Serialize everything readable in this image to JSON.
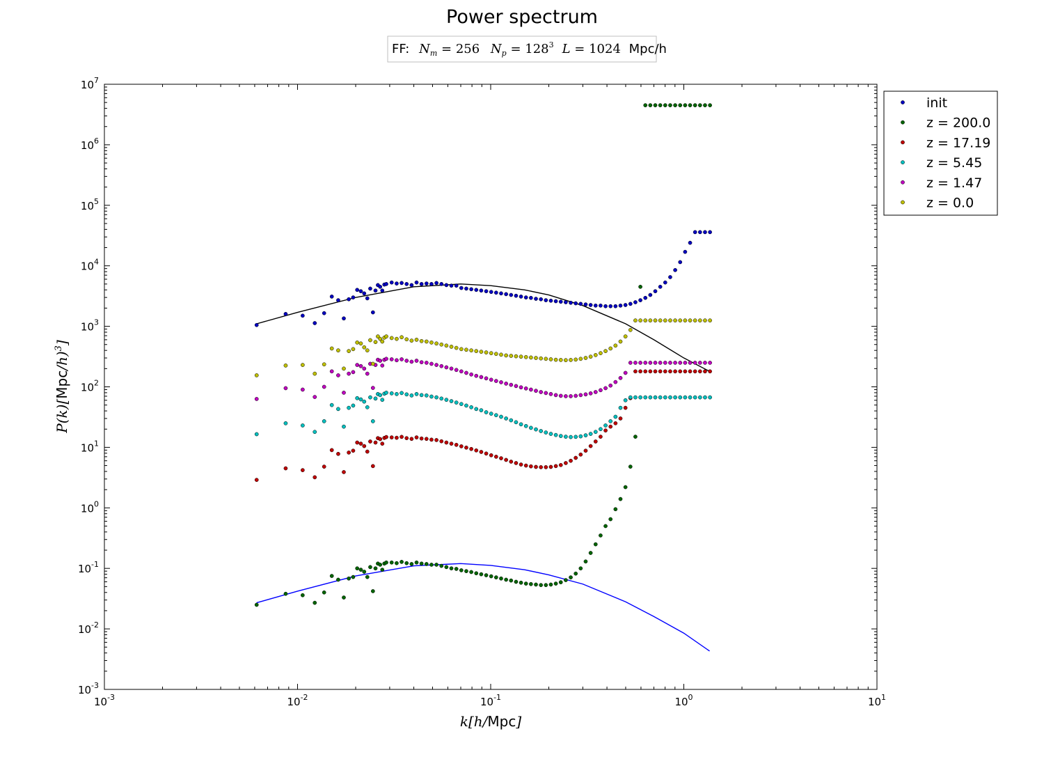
{
  "chart_data": {
    "type": "scatter",
    "title": "Power spectrum",
    "subtitle": "FF:  N_m = 256   N_p = 128^3    L = 1024 Mpc/h",
    "subtitle_parts": {
      "prefix": "FF:",
      "nm_sym": "N",
      "nm_sub": "m",
      "nm_val": "256",
      "np_sym": "N",
      "np_sub": "p",
      "np_val": "128",
      "np_exp": "3",
      "l_sym": "L",
      "l_val": "1024",
      "unit": "Mpc/h"
    },
    "xlabel": "k[h/Mpc]",
    "xlabel_parts": {
      "main": "k[h/",
      "unit": "Mpc",
      "end": "]"
    },
    "ylabel": "P(k)[Mpc/h)^3]",
    "ylabel_parts": {
      "main": "P(k)[",
      "unit": "Mpc",
      "rest": "/h)",
      "exp": "3",
      "end": "]"
    },
    "xscale": "log",
    "yscale": "log",
    "xlim": [
      0.001,
      10
    ],
    "ylim": [
      0.001,
      10000000
    ],
    "x_ticks": [
      {
        "base": "10",
        "exp": "-3",
        "value": 0.001
      },
      {
        "base": "10",
        "exp": "-2",
        "value": 0.01
      },
      {
        "base": "10",
        "exp": "-1",
        "value": 0.1
      },
      {
        "base": "10",
        "exp": "0",
        "value": 1
      },
      {
        "base": "10",
        "exp": "1",
        "value": 10
      }
    ],
    "y_ticks": [
      {
        "base": "10",
        "exp": "-3",
        "value": 0.001
      },
      {
        "base": "10",
        "exp": "-2",
        "value": 0.01
      },
      {
        "base": "10",
        "exp": "-1",
        "value": 0.1
      },
      {
        "base": "10",
        "exp": "0",
        "value": 1
      },
      {
        "base": "10",
        "exp": "1",
        "value": 10
      },
      {
        "base": "10",
        "exp": "2",
        "value": 100
      },
      {
        "base": "10",
        "exp": "3",
        "value": 1000
      },
      {
        "base": "10",
        "exp": "4",
        "value": 10000
      },
      {
        "base": "10",
        "exp": "5",
        "value": 100000
      },
      {
        "base": "10",
        "exp": "6",
        "value": 1000000
      },
      {
        "base": "10",
        "exp": "7",
        "value": 10000000
      }
    ],
    "grid": false,
    "legend_position": "outside-top-right",
    "k": [
      0.00614,
      0.00868,
      0.01063,
      0.01228,
      0.01373,
      0.01504,
      0.01624,
      0.01736,
      0.01842,
      0.01941,
      0.02036,
      0.02127,
      0.02214,
      0.02298,
      0.02379,
      0.02457,
      0.02533,
      0.02606,
      0.02678,
      0.02747,
      0.02815,
      0.02881,
      0.03071,
      0.0326,
      0.03459,
      0.03671,
      0.03895,
      0.04133,
      0.04385,
      0.04653,
      0.04937,
      0.05239,
      0.05559,
      0.05898,
      0.06259,
      0.06641,
      0.07047,
      0.07477,
      0.07934,
      0.08419,
      0.08933,
      0.09479,
      0.10058,
      0.10672,
      0.11324,
      0.12016,
      0.1275,
      0.13529,
      0.14355,
      0.15232,
      0.16163,
      0.1715,
      0.18198,
      0.19309,
      0.20489,
      0.21741,
      0.23069,
      0.24478,
      0.25973,
      0.2756,
      0.29243,
      0.3103,
      0.32925,
      0.34937,
      0.37071,
      0.39335,
      0.41738,
      0.44288,
      0.46993,
      0.49864,
      0.52909,
      0.56141,
      0.59571,
      0.6321,
      0.67071,
      0.71168,
      0.75515,
      0.8013,
      0.85024,
      0.90218,
      0.9573,
      1.01577,
      1.0778,
      1.14365,
      1.21351,
      1.28764,
      1.36629
    ],
    "series": [
      {
        "name": "init",
        "color": "#0000bf",
        "values": [
          1050,
          1600,
          1500,
          1130,
          1650,
          3100,
          2700,
          1350,
          2800,
          3000,
          4000,
          3800,
          3500,
          2900,
          4200,
          1700,
          3900,
          4800,
          4500,
          3900,
          4900,
          5000,
          5300,
          5100,
          5200,
          5000,
          4800,
          5300,
          5000,
          5100,
          5000,
          5200,
          5000,
          4800,
          4700,
          4700,
          4300,
          4200,
          4100,
          4000,
          3900,
          3800,
          3700,
          3600,
          3500,
          3400,
          3300,
          3200,
          3100,
          3000,
          2950,
          2850,
          2800,
          2700,
          2650,
          2600,
          2550,
          2500,
          2450,
          2400,
          2350,
          2300,
          2250,
          2200,
          2200,
          2150,
          2150,
          2150,
          2200,
          2250,
          2350,
          2500,
          2700,
          2950,
          3300,
          3800,
          4500,
          5300,
          6500,
          8500,
          11500,
          17000,
          24000,
          36000,
          36000,
          36000,
          36000
        ]
      },
      {
        "name": "z = 200.0",
        "color": "#006400",
        "values": [
          0.025,
          0.038,
          0.036,
          0.027,
          0.04,
          0.075,
          0.065,
          0.033,
          0.068,
          0.072,
          0.1,
          0.095,
          0.088,
          0.072,
          0.105,
          0.042,
          0.1,
          0.12,
          0.115,
          0.095,
          0.12,
          0.125,
          0.125,
          0.122,
          0.128,
          0.122,
          0.118,
          0.125,
          0.12,
          0.118,
          0.115,
          0.115,
          0.11,
          0.105,
          0.1,
          0.098,
          0.093,
          0.09,
          0.087,
          0.083,
          0.08,
          0.077,
          0.074,
          0.071,
          0.068,
          0.065,
          0.063,
          0.06,
          0.058,
          0.056,
          0.055,
          0.054,
          0.053,
          0.053,
          0.054,
          0.056,
          0.059,
          0.064,
          0.071,
          0.082,
          0.1,
          0.13,
          0.18,
          0.25,
          0.35,
          0.5,
          0.65,
          0.95,
          1.4,
          2.2,
          4.8,
          15,
          4500,
          4500000,
          4500000,
          4500000,
          4500000,
          4500000,
          4500000,
          4500000,
          4500000,
          4500000,
          4500000,
          4500000,
          4500000,
          4500000,
          4500000
        ]
      },
      {
        "name": "z = 17.19",
        "color": "#bf0000",
        "values": [
          2.9,
          4.5,
          4.2,
          3.2,
          4.8,
          9.0,
          7.8,
          3.9,
          8.2,
          8.8,
          12.0,
          11.5,
          10.5,
          8.5,
          12.5,
          4.9,
          12.0,
          14.2,
          13.7,
          11.5,
          14.3,
          14.8,
          14.6,
          14.4,
          14.9,
          14.2,
          13.8,
          14.6,
          14.0,
          13.8,
          13.4,
          13.2,
          12.6,
          12.0,
          11.5,
          11.0,
          10.4,
          9.9,
          9.4,
          8.9,
          8.4,
          7.9,
          7.4,
          7.0,
          6.6,
          6.2,
          5.8,
          5.5,
          5.2,
          5.0,
          4.85,
          4.75,
          4.7,
          4.7,
          4.75,
          4.9,
          5.1,
          5.5,
          6.0,
          6.7,
          7.6,
          8.8,
          10.5,
          12.5,
          15,
          19,
          22,
          25,
          30,
          45,
          65,
          180,
          180,
          180,
          180,
          180,
          180,
          180,
          180,
          180,
          180,
          180,
          180,
          180,
          180,
          180,
          180
        ]
      },
      {
        "name": "z = 5.45",
        "color": "#00bfbf",
        "values": [
          16.5,
          25,
          23,
          18,
          27,
          50,
          43,
          22,
          45,
          49,
          65,
          62,
          57,
          46,
          67,
          27,
          64,
          76,
          73,
          61,
          77,
          80,
          78,
          76,
          79,
          75,
          72,
          76,
          73,
          72,
          69,
          67,
          64,
          61,
          58,
          55,
          52,
          49,
          46,
          43,
          41,
          38,
          36,
          34,
          32,
          30,
          28,
          26,
          24,
          22.5,
          21,
          19.8,
          18.6,
          17.6,
          16.7,
          16,
          15.4,
          15,
          14.8,
          14.9,
          15.2,
          15.8,
          16.7,
          18,
          20,
          23,
          27,
          32,
          45,
          60,
          67,
          67,
          67,
          67,
          67,
          67,
          67,
          67,
          67,
          67,
          67,
          67,
          67,
          67,
          67,
          67,
          67
        ]
      },
      {
        "name": "z = 1.47",
        "color": "#bf00bf",
        "values": [
          63,
          95,
          90,
          68,
          100,
          180,
          155,
          80,
          165,
          175,
          230,
          220,
          200,
          165,
          240,
          96,
          230,
          280,
          270,
          225,
          280,
          290,
          285,
          275,
          285,
          270,
          260,
          270,
          255,
          250,
          240,
          230,
          220,
          210,
          200,
          190,
          180,
          170,
          160,
          152,
          145,
          138,
          131,
          125,
          119,
          113,
          108,
          103,
          98,
          94,
          90,
          86,
          82,
          79,
          76,
          73,
          71,
          70,
          70,
          71,
          73,
          75,
          78,
          82,
          88,
          95,
          105,
          120,
          140,
          170,
          250,
          250,
          250,
          250,
          250,
          250,
          250,
          250,
          250,
          250,
          250,
          250,
          250,
          250,
          250,
          250,
          250
        ]
      },
      {
        "name": "z = 0.0",
        "color": "#bfbf00",
        "values": [
          155,
          225,
          230,
          165,
          235,
          430,
          400,
          200,
          390,
          420,
          540,
          520,
          450,
          400,
          590,
          240,
          550,
          680,
          620,
          560,
          650,
          680,
          640,
          620,
          660,
          610,
          580,
          600,
          570,
          560,
          540,
          520,
          500,
          480,
          460,
          440,
          420,
          410,
          400,
          390,
          380,
          370,
          360,
          350,
          340,
          330,
          325,
          320,
          315,
          310,
          305,
          300,
          295,
          290,
          285,
          280,
          278,
          276,
          278,
          282,
          290,
          300,
          315,
          335,
          360,
          390,
          430,
          480,
          560,
          680,
          870,
          1250,
          1250,
          1250,
          1250,
          1250,
          1250,
          1250,
          1250,
          1250,
          1250,
          1250,
          1250,
          1250,
          1250,
          1250,
          1250
        ]
      }
    ],
    "theory_lines": [
      {
        "color": "#000000",
        "x": [
          0.00614,
          0.01,
          0.02,
          0.04,
          0.07,
          0.1,
          0.15,
          0.2,
          0.3,
          0.5,
          0.7,
          1.0,
          1.36
        ],
        "y": [
          1100,
          1700,
          3000,
          4500,
          5000,
          4700,
          4000,
          3300,
          2200,
          1100,
          600,
          300,
          180
        ]
      },
      {
        "color": "#0000ff",
        "x": [
          0.00614,
          0.01,
          0.02,
          0.04,
          0.07,
          0.1,
          0.15,
          0.2,
          0.3,
          0.5,
          0.7,
          1.0,
          1.36
        ],
        "y": [
          0.027,
          0.042,
          0.075,
          0.11,
          0.12,
          0.112,
          0.095,
          0.078,
          0.055,
          0.028,
          0.016,
          0.0085,
          0.0043
        ]
      }
    ]
  }
}
